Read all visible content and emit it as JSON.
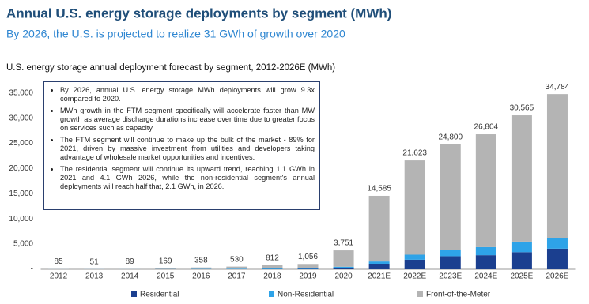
{
  "chart_data": {
    "type": "stacked_bar",
    "title": "Annual U.S. energy storage deployments by segment (MWh)",
    "subtitle": "By 2026, the U.S. is projected to realize 31 GWh of growth over 2020",
    "chart_title": "U.S. energy storage annual deployment forecast by segment, 2012-2026E (MWh)",
    "annotations": [
      "By 2026, annual U.S. energy storage MWh deployments will grow 9.3x compared to 2020.",
      "MWh growth in the FTM segment specifically will accelerate faster than MW growth as average discharge durations increase over time due to greater focus on services such as capacity.",
      "The FTM segment will continue to make up the bulk of the market - 89% for 2021, driven by massive investment from utilities and developers taking advantage of wholesale market opportunities and incentives.",
      "The residential segment will continue its upward trend, reaching 1.1 GWh in 2021 and 4.1 GWh 2026, while the non-residential segment's annual deployments will reach half that, 2.1 GWh, in 2026."
    ],
    "categories": [
      "2012",
      "2013",
      "2014",
      "2015",
      "2016",
      "2017",
      "2018",
      "2019",
      "2020",
      "2021E",
      "2022E",
      "2023E",
      "2024E",
      "2025E",
      "2026E"
    ],
    "series": [
      {
        "name": "Residential",
        "color": "#1b3f8f",
        "values": [
          5,
          5,
          5,
          10,
          15,
          20,
          40,
          80,
          250,
          1100,
          1900,
          2600,
          2800,
          3400,
          4100
        ]
      },
      {
        "name": "Non-Residential",
        "color": "#2ea3e8",
        "values": [
          20,
          15,
          25,
          40,
          60,
          100,
          150,
          200,
          250,
          450,
          1000,
          1300,
          1600,
          2100,
          2100
        ]
      },
      {
        "name": "Front-of-the-Meter",
        "color": "#b4b4b4",
        "values": [
          60,
          31,
          59,
          119,
          283,
          410,
          622,
          776,
          3251,
          13035,
          18723,
          20900,
          22404,
          25065,
          28584
        ]
      }
    ],
    "totals": {
      "values": [
        85,
        51,
        89,
        169,
        358,
        530,
        812,
        1056,
        3751,
        14585,
        21623,
        24800,
        26804,
        30565,
        34784
      ],
      "value_labels": [
        "85",
        "51",
        "89",
        "169",
        "358",
        "530",
        "812",
        "1,056",
        "3,751",
        "14,585",
        "21,623",
        "24,800",
        "26,804",
        "30,565",
        "34,784"
      ]
    },
    "ylim": [
      0,
      37000
    ],
    "yticks": [
      {
        "value": 0,
        "label": "-"
      },
      {
        "value": 5000,
        "label": "5,000"
      },
      {
        "value": 10000,
        "label": "10,000"
      },
      {
        "value": 15000,
        "label": "15,000"
      },
      {
        "value": 20000,
        "label": "20,000"
      },
      {
        "value": 25000,
        "label": "25,000"
      },
      {
        "value": 30000,
        "label": "30,000"
      },
      {
        "value": 35000,
        "label": "35,000"
      }
    ],
    "grid": false
  }
}
